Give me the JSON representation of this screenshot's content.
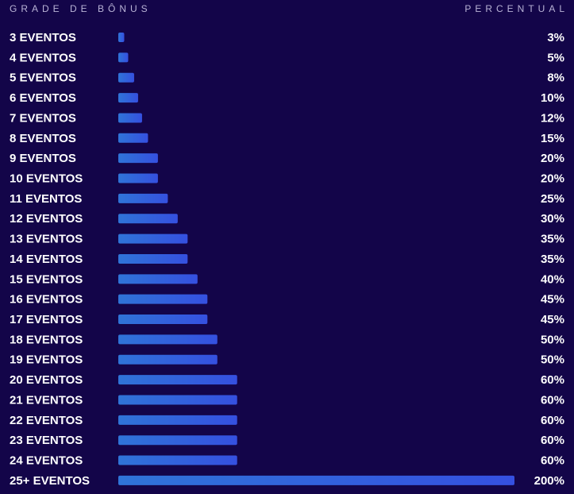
{
  "chart_data": {
    "type": "bar",
    "orientation": "horizontal",
    "header_left": "GRADE DE BÔNUS",
    "header_right": "PERCENTUAL",
    "categories": [
      "3 EVENTOS",
      "4 EVENTOS",
      "5 EVENTOS",
      "6 EVENTOS",
      "7 EVENTOS",
      "8 EVENTOS",
      "9 EVENTOS",
      "10 EVENTOS",
      "11 EVENTOS",
      "12 EVENTOS",
      "13 EVENTOS",
      "14 EVENTOS",
      "15 EVENTOS",
      "16 EVENTOS",
      "17 EVENTOS",
      "18 EVENTOS",
      "19 EVENTOS",
      "20 EVENTOS",
      "21 EVENTOS",
      "22 EVENTOS",
      "23 EVENTOS",
      "24 EVENTOS",
      "25+ EVENTOS"
    ],
    "values": [
      3,
      5,
      8,
      10,
      12,
      15,
      20,
      20,
      25,
      30,
      35,
      35,
      40,
      45,
      45,
      50,
      50,
      60,
      60,
      60,
      60,
      60,
      200
    ],
    "value_labels": [
      "3%",
      "5%",
      "8%",
      "10%",
      "12%",
      "15%",
      "20%",
      "20%",
      "25%",
      "30%",
      "35%",
      "35%",
      "40%",
      "45%",
      "45%",
      "50%",
      "50%",
      "60%",
      "60%",
      "60%",
      "60%",
      "60%",
      "200%"
    ],
    "color": "#3550e0",
    "xlim": [
      0,
      200
    ]
  }
}
